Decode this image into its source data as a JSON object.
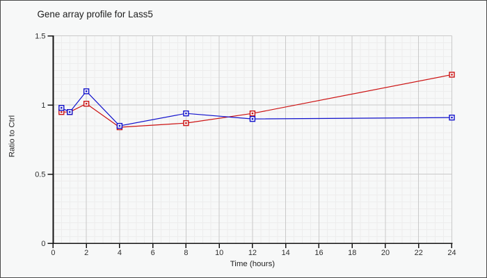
{
  "chart_data": {
    "type": "line",
    "title": "Gene array profile for Lass5",
    "xlabel": "Time (hours)",
    "ylabel": "Ratio to Ctrl",
    "xlim": [
      0,
      24
    ],
    "ylim": [
      0,
      1.5
    ],
    "x": [
      0.5,
      1,
      2,
      4,
      8,
      12,
      24
    ],
    "series": [
      {
        "name": "red-series",
        "color": "#cc1111",
        "values": [
          0.95,
          0.95,
          1.01,
          0.84,
          0.87,
          0.94,
          1.22
        ]
      },
      {
        "name": "blue-series",
        "color": "#1111cc",
        "values": [
          0.98,
          0.95,
          1.1,
          0.85,
          0.94,
          0.9,
          0.91
        ]
      }
    ],
    "x_major_ticks": [
      0,
      2,
      4,
      6,
      8,
      10,
      12,
      14,
      16,
      18,
      20,
      22,
      24
    ],
    "x_tick_labels": [
      "0",
      "2",
      "4",
      "6",
      "8",
      "10",
      "12",
      "14",
      "16",
      "18",
      "20",
      "22",
      "24"
    ],
    "y_major_ticks": [
      0,
      0.5,
      1,
      1.5
    ],
    "y_tick_labels": [
      "0",
      "0.5",
      "1",
      "1.5"
    ],
    "x_minor_step": 0.5,
    "y_minor_step": 0.05,
    "grid": true,
    "legend": "none",
    "marker": "open-square-with-dot"
  },
  "colors": {
    "background": "#f7f8f8",
    "grid_minor": "#ededed",
    "grid_major": "#c9c9c9",
    "axis": "#141414",
    "tick_text": "#2e2e2e",
    "label_text": "#222222",
    "title_text": "#1c1c1c",
    "frame_border": "#4a4a4a"
  }
}
